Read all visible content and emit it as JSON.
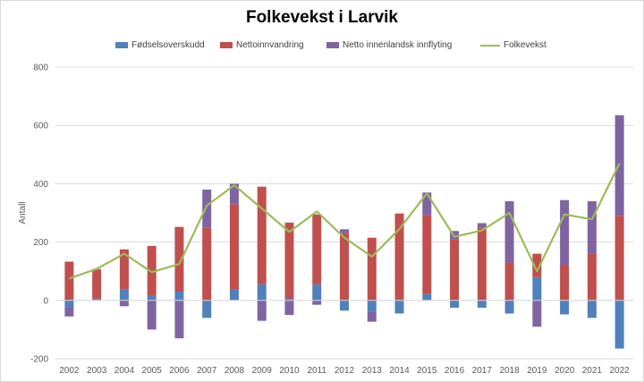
{
  "chart_data": {
    "type": "bar",
    "title": "Folkevekst i Larvik",
    "ylabel": "Antall",
    "xlabel": "",
    "ylim": [
      -200,
      800
    ],
    "yticks": [
      -200,
      0,
      200,
      400,
      600,
      800
    ],
    "grid": true,
    "legend_position": "top",
    "categories": [
      "2002",
      "2003",
      "2004",
      "2005",
      "2006",
      "2007",
      "2008",
      "2009",
      "2010",
      "2011",
      "2012",
      "2013",
      "2014",
      "2015",
      "2016",
      "2017",
      "2018",
      "2019",
      "2020",
      "2021",
      "2022"
    ],
    "series": [
      {
        "name": "Fødselsoverskudd",
        "type": "bar",
        "color": "#4f81bd",
        "values": [
          -25,
          6,
          38,
          15,
          30,
          -60,
          38,
          55,
          7,
          55,
          -35,
          -38,
          -45,
          22,
          -25,
          -25,
          -45,
          80,
          -48,
          -60,
          -165
        ]
      },
      {
        "name": "Nettoinnvandring",
        "type": "bar",
        "color": "#c0504d",
        "values": [
          133,
          98,
          137,
          172,
          222,
          250,
          292,
          335,
          260,
          240,
          232,
          215,
          298,
          270,
          210,
          250,
          130,
          80,
          122,
          160,
          290
        ]
      },
      {
        "name": "Netto innenlandsk innflyting",
        "type": "bar",
        "color": "#8064a2",
        "values": [
          -30,
          4,
          -20,
          -100,
          -130,
          130,
          70,
          -70,
          -50,
          -15,
          12,
          -35,
          0,
          78,
          28,
          15,
          210,
          -90,
          222,
          180,
          345
        ]
      },
      {
        "name": "Folkevekst",
        "type": "line",
        "color": "#9bbb59",
        "values": [
          75,
          108,
          160,
          97,
          125,
          325,
          395,
          315,
          235,
          305,
          215,
          150,
          245,
          367,
          218,
          240,
          300,
          100,
          295,
          278,
          470
        ]
      }
    ]
  }
}
